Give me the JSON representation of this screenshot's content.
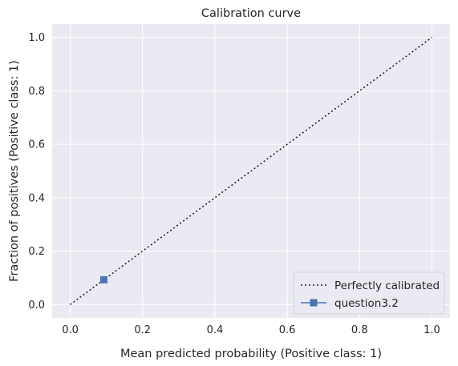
{
  "chart_data": {
    "type": "line",
    "title": "Calibration curve",
    "xlabel": "Mean predicted probability (Positive class: 1)",
    "ylabel": "Fraction of positives (Positive class: 1)",
    "xlim": [
      -0.05,
      1.05
    ],
    "ylim": [
      -0.05,
      1.05
    ],
    "xticks": [
      "0.0",
      "0.2",
      "0.4",
      "0.6",
      "0.8",
      "1.0"
    ],
    "yticks": [
      "0.0",
      "0.2",
      "0.4",
      "0.6",
      "0.8",
      "1.0"
    ],
    "grid": true,
    "legend_position": "bottom-right",
    "series": [
      {
        "name": "Perfectly calibrated",
        "x": [
          0,
          1
        ],
        "y": [
          0,
          1
        ],
        "style": "dotted",
        "color": "#262626"
      },
      {
        "name": "question3.2",
        "x": [
          0.093
        ],
        "y": [
          0.093
        ],
        "style": "solid-square-marker",
        "color": "#4c72b0"
      }
    ],
    "colors": {
      "background": "#eaeaf2",
      "grid": "#ffffff",
      "text": "#262626"
    }
  }
}
